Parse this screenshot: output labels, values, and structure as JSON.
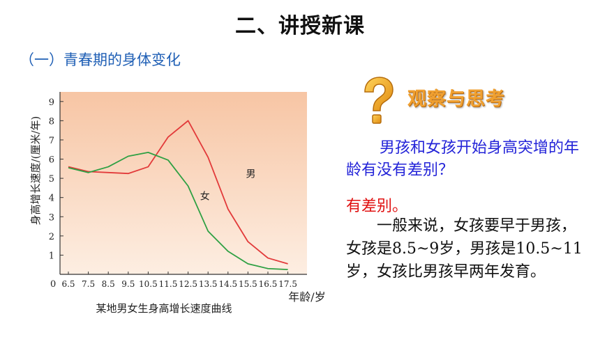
{
  "heading": "二、讲授新课",
  "section_title": "（一）青春期的身体变化",
  "observe": {
    "icon": "question-mark-icon",
    "title": "观察与思考"
  },
  "question": "男孩和女孩开始身高突增的年龄有没有差别？",
  "answer_label": "有差别。",
  "answer_body": "一般来说，女孩要早于男孩，女孩是8.5~9岁，男孩是10.5~11岁，女孩比男孩早两年发育。",
  "colors": {
    "boy": "#e23a3a",
    "girl": "#2ea043",
    "plot_bg_top": "#f7c5a4",
    "plot_bg_bottom": "#fdeee2"
  },
  "chart_data": {
    "type": "line",
    "caption": "某地男女生身高增长速度曲线",
    "ylabel": "身高增长速度/(厘米/年)",
    "xlabel": "年龄/岁",
    "x": [
      6.5,
      7.5,
      8.5,
      9.5,
      10.5,
      11.5,
      12.5,
      13.5,
      14.5,
      15.5,
      16.5,
      17.5
    ],
    "x_tick_labels": [
      "6.5",
      "7.5",
      "8.5",
      "9.5",
      "10.5",
      "11.5",
      "12.5",
      "13.5",
      "14.5",
      "15.5",
      "16.5",
      "17.5"
    ],
    "y_ticks": [
      1,
      2,
      3,
      4,
      5,
      6,
      7,
      8,
      9
    ],
    "origin_label": "0",
    "ylim": [
      0,
      9.5
    ],
    "series": [
      {
        "name": "男",
        "values": [
          5.6,
          5.35,
          5.3,
          5.25,
          5.6,
          7.15,
          8.0,
          6.1,
          3.4,
          1.7,
          0.85,
          0.55
        ]
      },
      {
        "name": "女",
        "values": [
          5.55,
          5.3,
          5.6,
          6.15,
          6.35,
          5.95,
          4.6,
          2.25,
          1.2,
          0.55,
          0.3,
          0.25
        ]
      }
    ]
  }
}
